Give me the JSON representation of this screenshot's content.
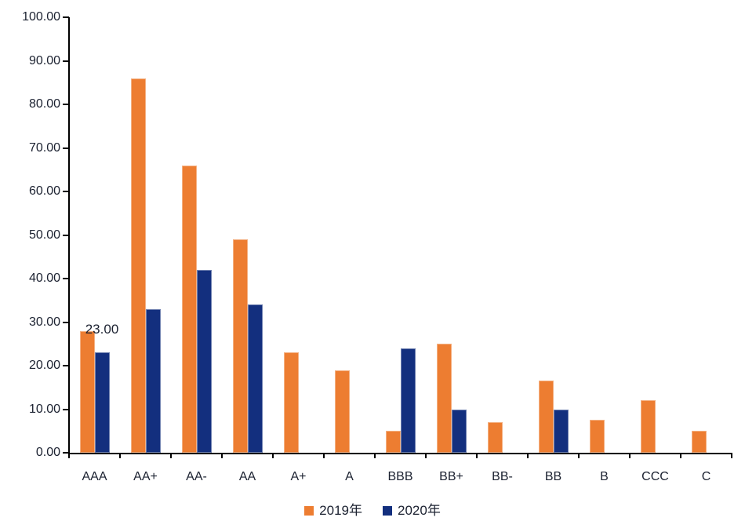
{
  "chart_data": {
    "type": "bar",
    "title": "",
    "xlabel": "",
    "ylabel": "",
    "categories": [
      "AAA",
      "AA+",
      "AA-",
      "AA",
      "A+",
      "A",
      "BBB",
      "BB+",
      "BB-",
      "BB",
      "B",
      "CCC",
      "C"
    ],
    "series": [
      {
        "name": "2019年",
        "color": "#ED7D31",
        "values": [
          28,
          86,
          66,
          49,
          23,
          19,
          5,
          25,
          7,
          16.5,
          7.5,
          12,
          5
        ]
      },
      {
        "name": "2020年",
        "color": "#132F7E",
        "values": [
          23,
          33,
          42,
          34,
          0,
          0,
          24,
          10,
          0,
          10,
          0,
          0,
          0
        ]
      }
    ],
    "ylim": [
      0,
      100
    ],
    "y_ticks": [
      "0.00",
      "10.00",
      "20.00",
      "30.00",
      "40.00",
      "50.00",
      "60.00",
      "70.00",
      "80.00",
      "90.00",
      "100.00"
    ],
    "grid": false,
    "legend_position": "bottom",
    "annotation": {
      "text": "23.00",
      "series_index": 1,
      "category_index": 0
    }
  },
  "colors": {
    "axis": "#000000",
    "text": "#1b2130",
    "background": "#ffffff"
  }
}
